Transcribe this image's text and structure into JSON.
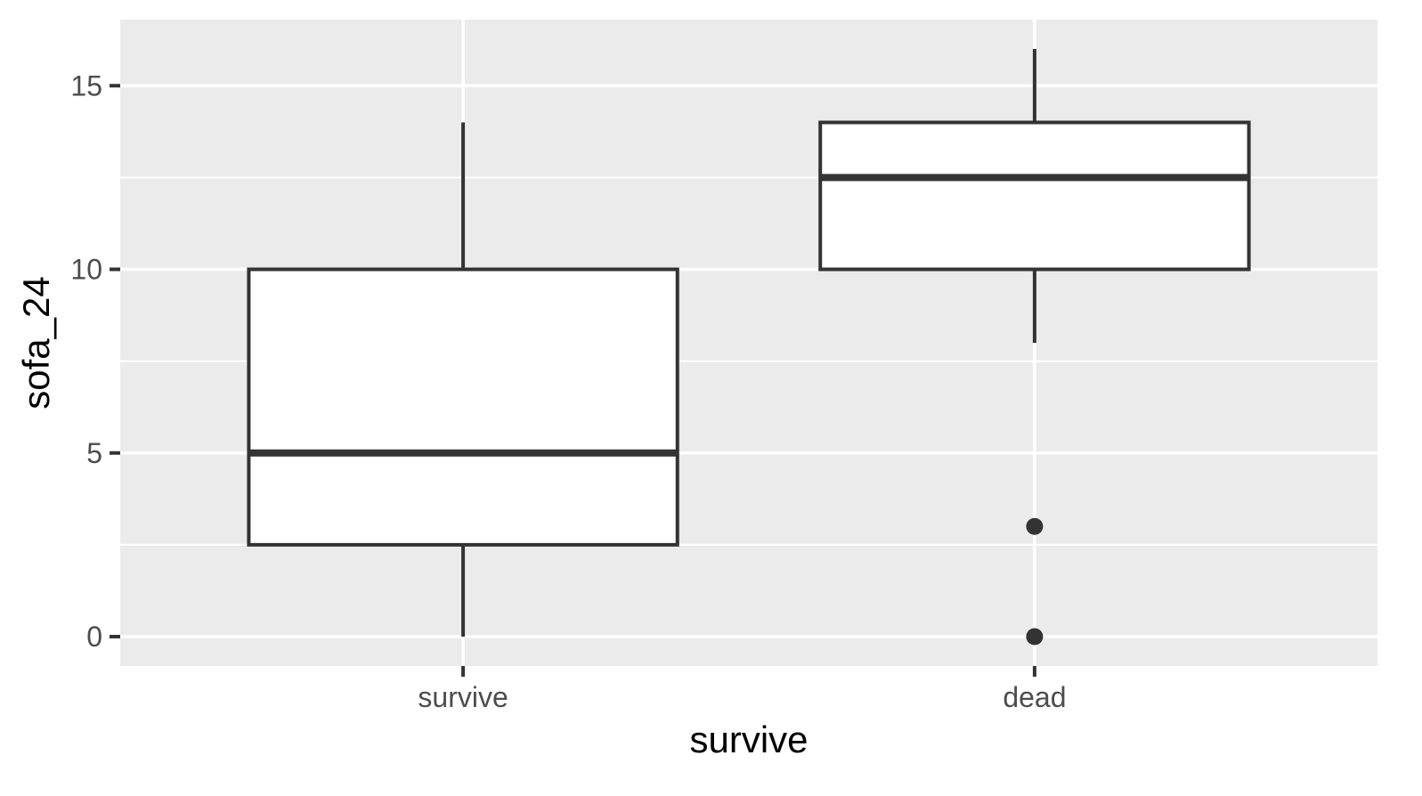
{
  "chart_data": {
    "type": "boxplot",
    "xlabel": "survive",
    "ylabel": "sofa_24",
    "categories": [
      "survive",
      "dead"
    ],
    "ylim": [
      -0.8,
      16.8
    ],
    "y_ticks": [
      0,
      5,
      10,
      15
    ],
    "grid": true,
    "boxes": [
      {
        "category": "survive",
        "whisker_low": 0,
        "q1": 2.5,
        "median": 5,
        "q3": 10,
        "whisker_high": 14,
        "outliers": []
      },
      {
        "category": "dead",
        "whisker_low": 8,
        "q1": 10,
        "median": 12.5,
        "q3": 14,
        "whisker_high": 16,
        "outliers": [
          3,
          0
        ]
      }
    ],
    "colors": {
      "panel": "#EBEBEB",
      "grid": "#FFFFFF",
      "box_line": "#333333",
      "box_fill": "#FFFFFF",
      "tick_text": "#4D4D4D",
      "title_text": "#000000"
    }
  }
}
